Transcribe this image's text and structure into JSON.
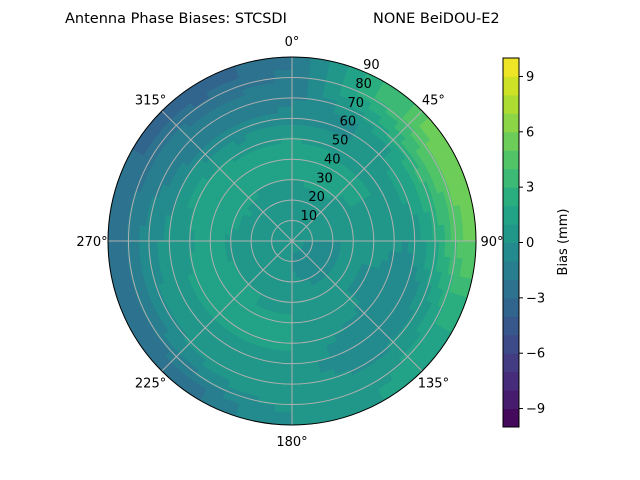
{
  "chart_data": {
    "type": "heatmap",
    "subtype": "polar-contourf",
    "title_left": "Antenna Phase Biases: STCSDI",
    "title_right": "NONE BeiDOU-E2",
    "theta_zero": "top",
    "theta_direction": "clockwise",
    "theta_tick_labels": [
      "0°",
      "45°",
      "90°",
      "135°",
      "180°",
      "225°",
      "270°",
      "315°"
    ],
    "theta_tick_values": [
      0,
      45,
      90,
      135,
      180,
      225,
      270,
      315
    ],
    "r_tick_labels": [
      "10",
      "20",
      "30",
      "40",
      "50",
      "60",
      "70",
      "80",
      "90"
    ],
    "r_tick_values": [
      10,
      20,
      30,
      40,
      50,
      60,
      70,
      80,
      90
    ],
    "rlim": [
      0,
      90
    ],
    "grid": true,
    "colormap": "viridis",
    "colorbar": {
      "label": "Bias (mm)",
      "range": [
        -10,
        10
      ],
      "levels_step": 1,
      "tick_values": [
        -9,
        -6,
        -3,
        0,
        3,
        6,
        9
      ],
      "tick_labels": [
        "−9",
        "−6",
        "−3",
        "0",
        "3",
        "6",
        "9"
      ],
      "placement": "right"
    },
    "azimuth": [
      0,
      30,
      60,
      90,
      120,
      150,
      180,
      210,
      240,
      270,
      300,
      330
    ],
    "zenith_bands": [
      5,
      15,
      25,
      35,
      45,
      55,
      65,
      75,
      85
    ],
    "values": [
      [
        0,
        0,
        0.5,
        1.5,
        1.5,
        0.5,
        -1,
        -1.5,
        -2
      ],
      [
        0,
        0,
        1,
        1.5,
        1,
        0,
        0,
        2,
        3
      ],
      [
        0,
        0,
        0.5,
        1,
        1,
        1,
        2,
        4,
        6
      ],
      [
        0,
        0,
        0,
        0,
        0.5,
        0,
        1,
        3,
        5
      ],
      [
        0,
        -0.5,
        0,
        0,
        -0.5,
        -1,
        -0.5,
        1,
        2
      ],
      [
        0,
        -0.5,
        0,
        0,
        0.5,
        -0.5,
        -1,
        0.5,
        1
      ],
      [
        0,
        0,
        0.5,
        1,
        1,
        1,
        0.5,
        1,
        0
      ],
      [
        0,
        0,
        1,
        1,
        1.5,
        1,
        1,
        0,
        -2
      ],
      [
        0,
        0,
        0.5,
        1.5,
        2,
        1,
        0.5,
        -1,
        -3
      ],
      [
        0,
        0,
        0.5,
        1,
        1,
        0.5,
        0,
        -1,
        -2.5
      ],
      [
        0,
        0,
        1,
        2,
        2,
        1,
        -1,
        -1.5,
        -3
      ],
      [
        0,
        0,
        0.5,
        1.5,
        1.5,
        0,
        -1.5,
        -2,
        -3.5
      ]
    ]
  }
}
